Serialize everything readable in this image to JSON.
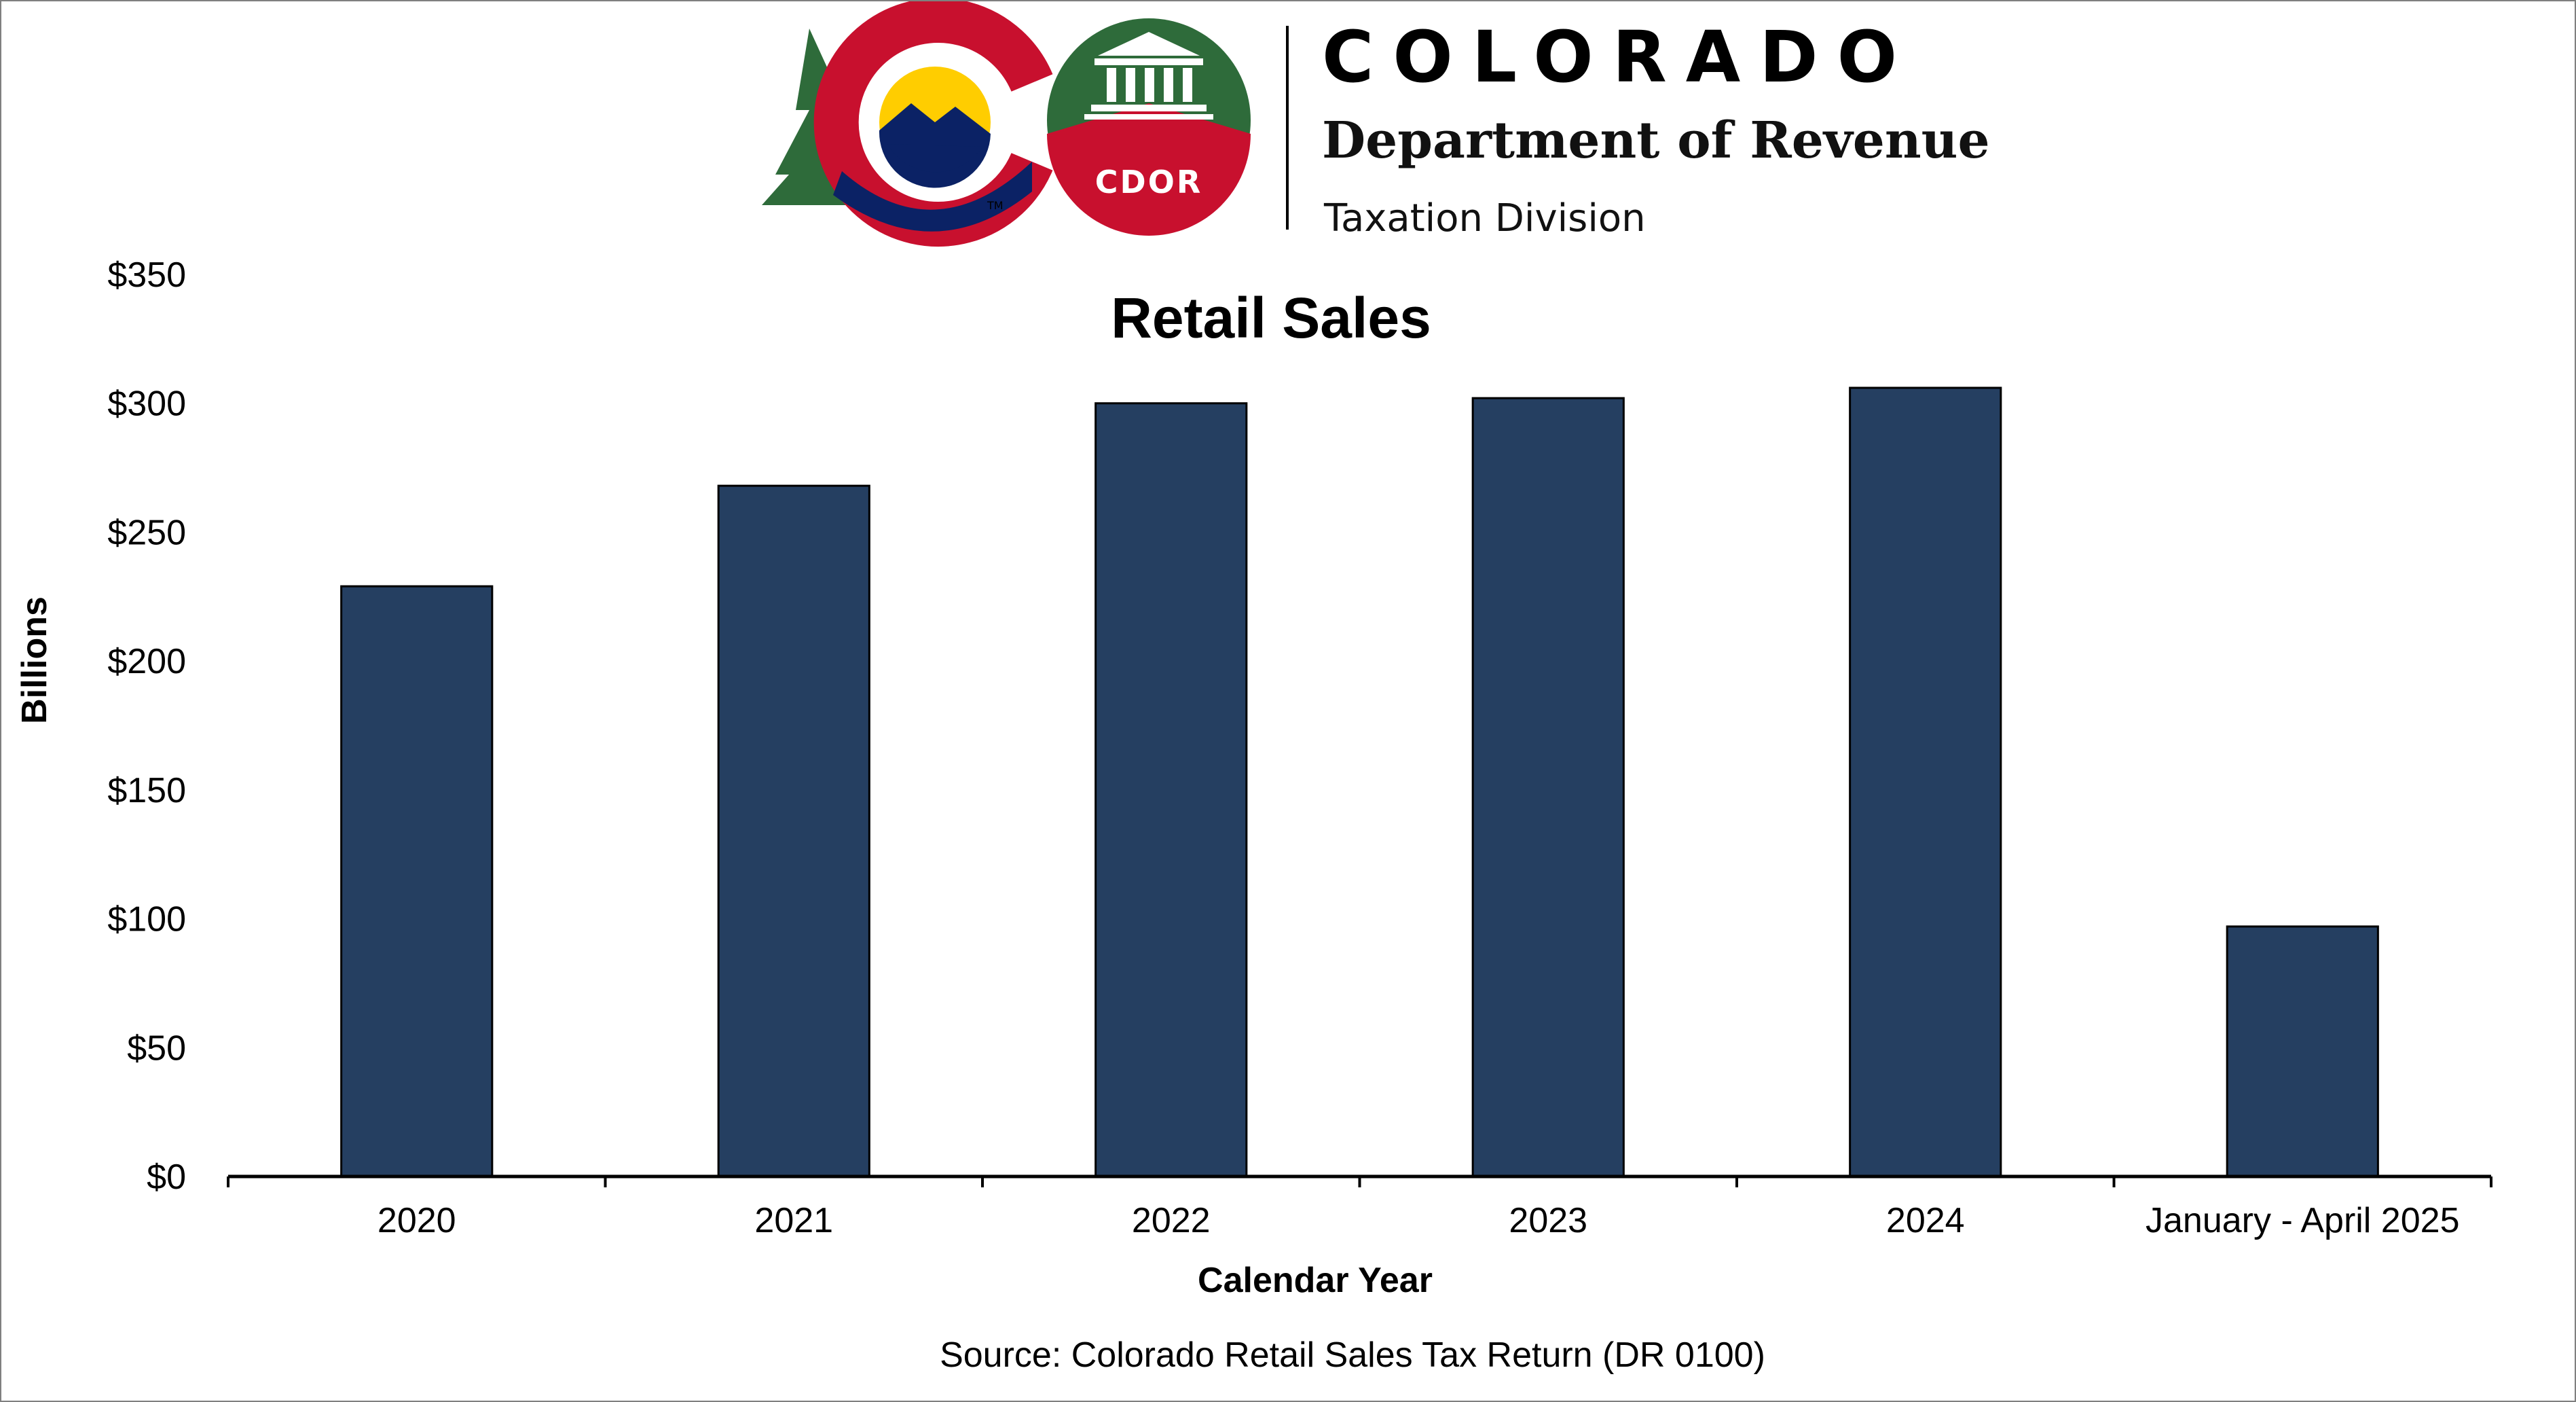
{
  "header": {
    "org_name": "COLORADO",
    "department": "Department of Revenue",
    "division": "Taxation Division",
    "badge_text": "CDOR",
    "trademark": "TM"
  },
  "colors": {
    "bar_fill": "#253f61",
    "bar_stroke": "#000000",
    "logo_red": "#c8102e",
    "logo_green": "#2e6b3a",
    "logo_blue": "#0b2265",
    "logo_yellow": "#ffcd00"
  },
  "chart_data": {
    "type": "bar",
    "title": "Retail Sales",
    "xlabel": "Calendar Year",
    "ylabel": "Billions",
    "source": "Source: Colorado Retail Sales Tax Return (DR 0100)",
    "categories": [
      "2020",
      "2021",
      "2022",
      "2023",
      "2024",
      "January - April 2025"
    ],
    "values": [
      229,
      268,
      300,
      302,
      306,
      97
    ],
    "ylim": [
      0,
      350
    ],
    "yticks": [
      0,
      50,
      100,
      150,
      200,
      250,
      300,
      350
    ],
    "ytick_labels": [
      "$0",
      "$50",
      "$100",
      "$150",
      "$200",
      "$250",
      "$300",
      "$350"
    ],
    "grid": false,
    "legend": "none"
  }
}
